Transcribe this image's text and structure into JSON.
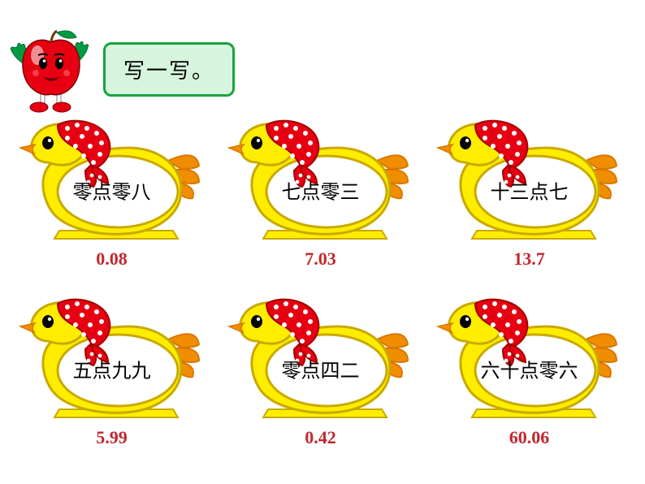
{
  "header": {
    "title": "写一写。",
    "bubble_bg": "#d7f5de",
    "bubble_border": "#1aa33f"
  },
  "apple": {
    "body_color": "#e60012",
    "highlight_color": "#ffffff",
    "leaf_color": "#009944",
    "stem_color": "#6a3906",
    "hand_color": "#009944",
    "shoe_color": "#e60012",
    "leg_color": "#ffffff",
    "eye_color": "#000000",
    "mouth_color": "#6b0000"
  },
  "chick_style": {
    "body_fill": "#ffed00",
    "body_stroke": "#c9a900",
    "oval_fill": "#ffffff",
    "oval_stroke": "#c9a900",
    "headscarf_fill": "#e60012",
    "headscarf_dot": "#ffffff",
    "beak_fill": "#f18d00",
    "eye_fill": "#000000",
    "eye_white": "#ffffff",
    "tail_fill": "#f18d00",
    "tail_stroke": "#d97700"
  },
  "answer_color": "#c1272d",
  "items": [
    {
      "chinese": "零点零八",
      "answer": "0.08"
    },
    {
      "chinese": "七点零三",
      "answer": "7.03"
    },
    {
      "chinese": "十三点七",
      "answer": "13.7"
    },
    {
      "chinese": "五点九九",
      "answer": "5.99"
    },
    {
      "chinese": "零点四二",
      "answer": "0.42"
    },
    {
      "chinese": "六十点零六",
      "answer": "60.06"
    }
  ]
}
